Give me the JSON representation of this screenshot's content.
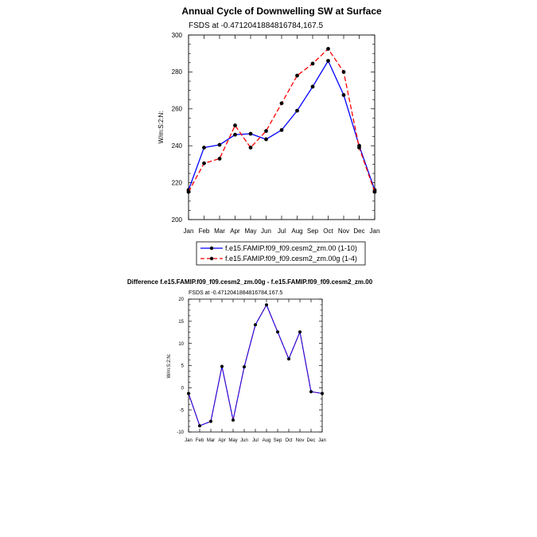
{
  "chart_data": [
    {
      "type": "line",
      "title": "Annual Cycle of Downwelling SW at Surface",
      "subtitle": "FSDS at -0.4712041884816784,167.5",
      "ylabel": "W/m:S:2:N:",
      "xlabel": "",
      "categories": [
        "Jan",
        "Feb",
        "Mar",
        "Apr",
        "May",
        "Jun",
        "Jul",
        "Aug",
        "Sep",
        "Oct",
        "Nov",
        "Dec",
        "Jan"
      ],
      "ylim": [
        200,
        300
      ],
      "yticks": [
        200,
        220,
        240,
        260,
        280,
        300
      ],
      "grid": false,
      "legend_position": "bottom",
      "series": [
        {
          "name": "f.e15.FAMIP.f09_f09.cesm2_zm.00 (1-10)",
          "color": "#0000ff",
          "dash": "solid",
          "values": [
            216,
            239,
            240.5,
            246,
            246.5,
            243.5,
            248.5,
            259,
            272,
            286,
            267.5,
            240,
            216
          ]
        },
        {
          "name": "f.e15.FAMIP.f09_f09.cesm2_zm.00g (1-4)",
          "color": "#ff0000",
          "dash": "dashed",
          "values": [
            215,
            230.5,
            233,
            251,
            239,
            248,
            263,
            278,
            284.5,
            292.5,
            280,
            239,
            215
          ]
        }
      ]
    },
    {
      "type": "line",
      "title": "Difference f.e15.FAMIP.f09_f09.cesm2_zm.00g - f.e15.FAMIP.f09_f09.cesm2_zm.00",
      "subtitle": "FSDS at -0.4712041884816784,167.5",
      "ylabel": "W/m:S:2:N:",
      "xlabel": "",
      "categories": [
        "Jan",
        "Feb",
        "Mar",
        "Apr",
        "May",
        "Jun",
        "Jul",
        "Aug",
        "Sep",
        "Oct",
        "Nov",
        "Dec",
        "Jan"
      ],
      "ylim": [
        -10,
        20
      ],
      "yticks": [
        -10,
        -5,
        0,
        5,
        10,
        15,
        20
      ],
      "grid": false,
      "series": [
        {
          "color": "#0000ff",
          "overlay_color": "#ff0000",
          "values": [
            -1.3,
            -8.6,
            -7.6,
            4.8,
            -7.3,
            4.7,
            14.2,
            18.7,
            12.6,
            6.5,
            12.6,
            -0.9,
            -1.3
          ]
        }
      ]
    }
  ]
}
